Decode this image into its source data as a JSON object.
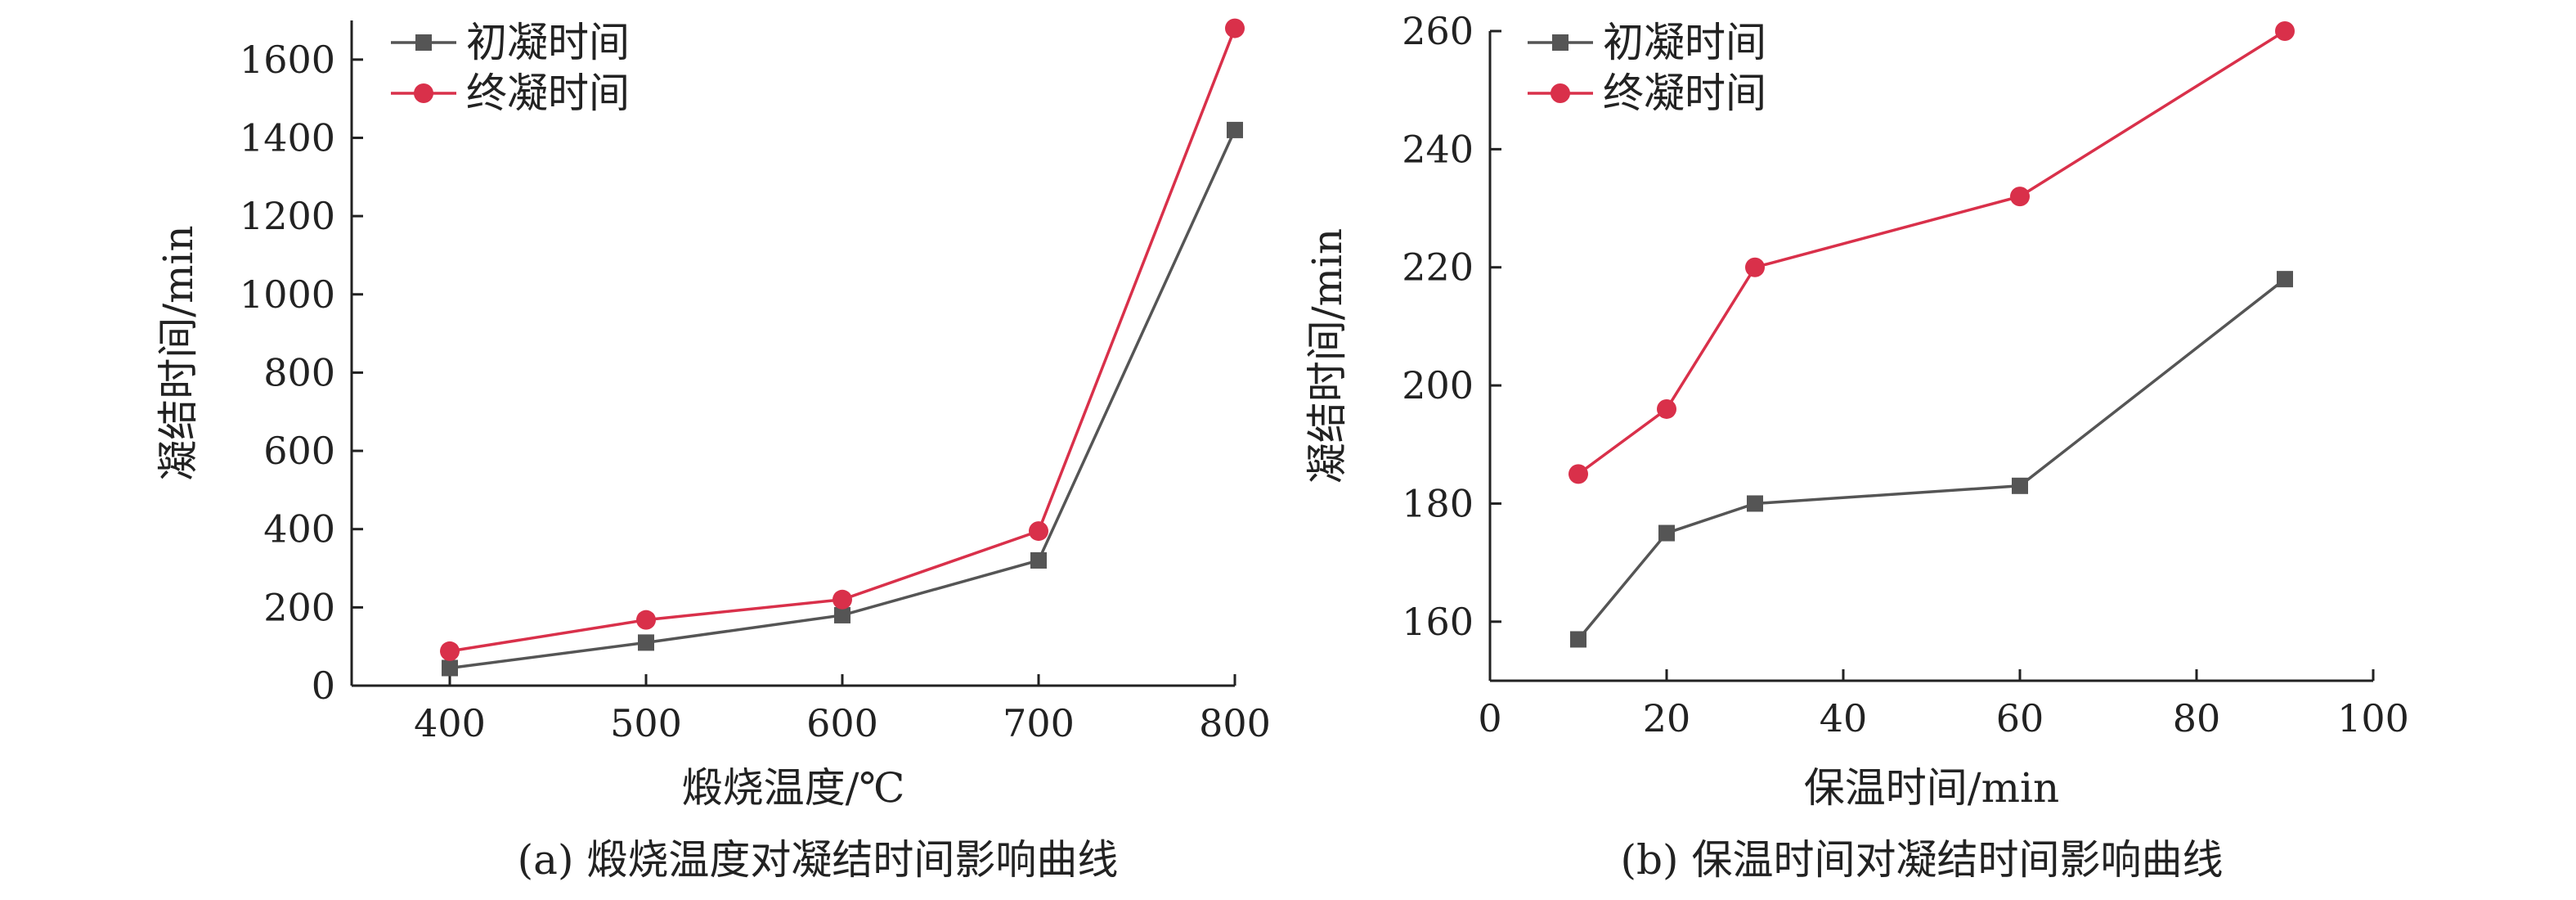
{
  "chart_data": [
    {
      "type": "line",
      "caption": "(a) 煅烧温度对凝结时间影响曲线",
      "xlabel": "煅烧温度/℃",
      "ylabel": "凝结时间/min",
      "x": [
        400,
        500,
        600,
        700,
        800
      ],
      "xlim": [
        350,
        800
      ],
      "ylim": [
        0,
        1700
      ],
      "xticks": [
        400,
        500,
        600,
        700,
        800
      ],
      "yticks": [
        0,
        200,
        400,
        600,
        800,
        1000,
        1200,
        1400,
        1600
      ],
      "legend_position": "top-left",
      "grid": false,
      "series": [
        {
          "name": "初凝时间",
          "marker": "square",
          "color": "#555555",
          "values": [
            45,
            110,
            180,
            320,
            1420
          ]
        },
        {
          "name": "终凝时间",
          "marker": "circle",
          "color": "#d9304a",
          "values": [
            88,
            168,
            220,
            395,
            1680
          ]
        }
      ]
    },
    {
      "type": "line",
      "caption": "(b) 保温时间对凝结时间影响曲线",
      "xlabel": "保温时间/min",
      "ylabel": "凝结时间/min",
      "x": [
        10,
        20,
        30,
        60,
        90
      ],
      "xlim": [
        0,
        100
      ],
      "ylim": [
        150,
        260
      ],
      "xticks": [
        0,
        20,
        40,
        60,
        80,
        100
      ],
      "yticks": [
        160,
        180,
        200,
        220,
        240,
        260
      ],
      "legend_position": "top-left",
      "grid": false,
      "series": [
        {
          "name": "初凝时间",
          "marker": "square",
          "color": "#555555",
          "values": [
            157,
            175,
            180,
            183,
            218
          ]
        },
        {
          "name": "终凝时间",
          "marker": "circle",
          "color": "#d9304a",
          "values": [
            185,
            196,
            220,
            232,
            260
          ]
        }
      ]
    }
  ]
}
